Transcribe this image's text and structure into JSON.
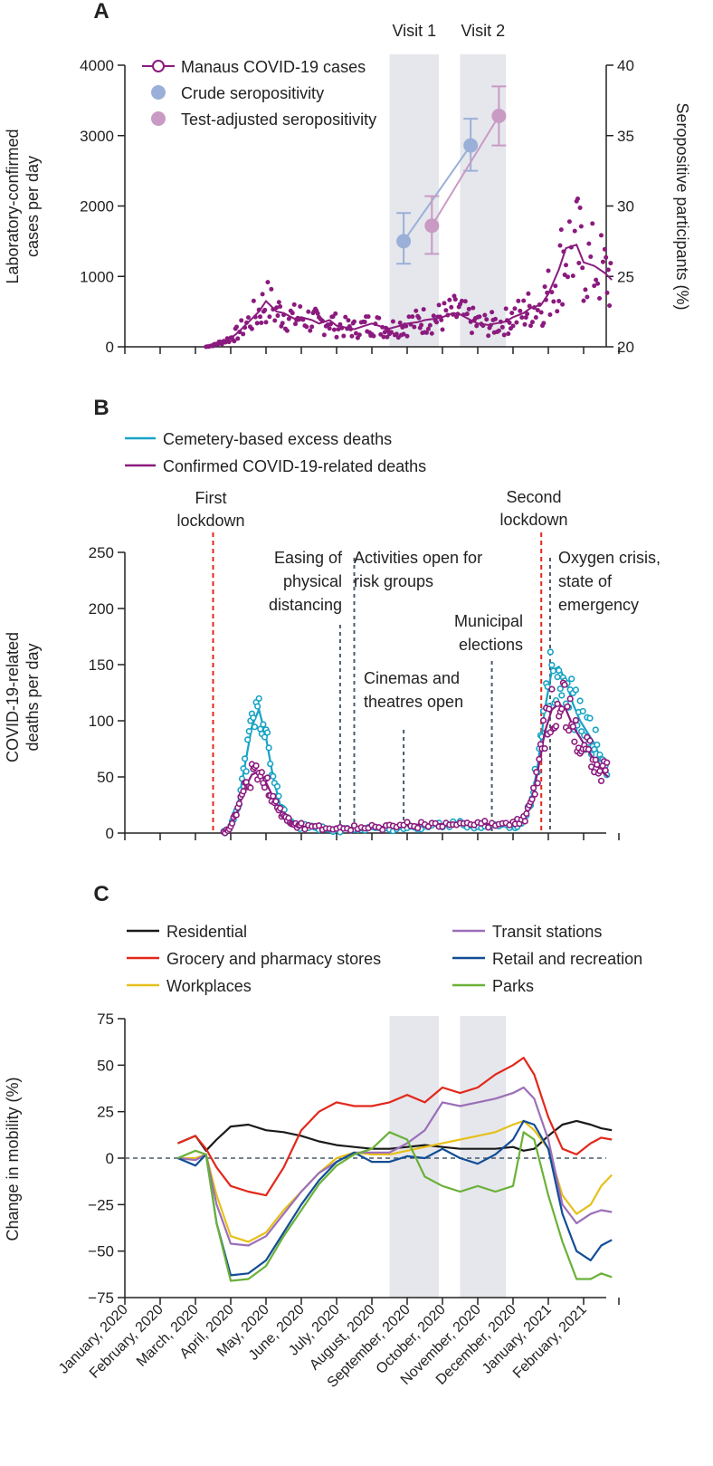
{
  "chart_data": [
    {
      "panel": "A",
      "type": "scatter",
      "title": "",
      "ylabel_left": "Laboratory-confirmed cases per day",
      "ylabel_right": "Seropositive participants (%)",
      "ylim_left": [
        0,
        4000
      ],
      "yticks_left": [
        "0",
        "1000",
        "2000",
        "3000",
        "4000"
      ],
      "ylim_right": [
        20,
        40
      ],
      "yticks_right": [
        "20",
        "25",
        "30",
        "35",
        "40"
      ],
      "visit_labels": [
        "Visit 1",
        "Visit 2"
      ],
      "visit_windows": [
        [
          7.5,
          8.9
        ],
        [
          9.5,
          10.8
        ]
      ],
      "legend": [
        "Manaus COVID-19 cases",
        "Crude seropositivity",
        "Test-adjusted seropositivity"
      ],
      "colors": {
        "cases": "#8b1a7e",
        "crude": "#9bb0d8",
        "adjusted": "#c99ac4",
        "band": "#e5e7ec"
      },
      "cases_series": {
        "name": "Manaus COVID-19 cases",
        "x": [
          2.3,
          2.5,
          2.7,
          3.0,
          3.2,
          3.5,
          3.8,
          4.0,
          4.3,
          4.5,
          4.8,
          5.0,
          5.3,
          5.5,
          5.8,
          6.0,
          6.3,
          6.5,
          6.8,
          7.0,
          7.3,
          7.5,
          7.8,
          8.0,
          8.3,
          8.5,
          8.8,
          9.0,
          9.3,
          9.5,
          9.8,
          10.0,
          10.3,
          10.5,
          10.8,
          11.0,
          11.3,
          11.5,
          11.8,
          12.0,
          12.3,
          12.5,
          12.8,
          13.0,
          13.3,
          13.6,
          13.8
        ],
        "values": [
          0,
          20,
          60,
          120,
          200,
          350,
          500,
          650,
          500,
          480,
          400,
          420,
          380,
          330,
          380,
          300,
          270,
          250,
          300,
          330,
          280,
          260,
          300,
          330,
          350,
          380,
          400,
          420,
          480,
          460,
          380,
          330,
          310,
          330,
          360,
          420,
          480,
          550,
          600,
          750,
          1100,
          1400,
          1450,
          1200,
          1150,
          1050,
          950
        ]
      },
      "crude_seropositivity": {
        "x": [
          7.9,
          9.8
        ],
        "values": [
          27.5,
          34.3
        ],
        "err_low": [
          25.9,
          32.5
        ],
        "err_high": [
          29.5,
          36.2
        ]
      },
      "adjusted_seropositivity": {
        "x": [
          8.7,
          10.6
        ],
        "values": [
          28.6,
          36.4
        ],
        "err_low": [
          26.6,
          34.3
        ],
        "err_high": [
          30.7,
          38.5
        ]
      }
    },
    {
      "panel": "B",
      "type": "line",
      "title": "",
      "ylabel": "COVID-19-related deaths per day",
      "ylim": [
        0,
        250
      ],
      "yticks": [
        "0",
        "50",
        "100",
        "150",
        "200",
        "250"
      ],
      "legend": [
        "Cemetery-based excess deaths",
        "Confirmed COVID-19-related deaths"
      ],
      "colors": {
        "cemetery": "#17a3c4",
        "confirmed": "#8b1a7e",
        "lockdown": "#e2281b",
        "event": "#4a5a6a"
      },
      "series": [
        {
          "name": "Cemetery-based excess deaths",
          "x": [
            2.8,
            3.0,
            3.2,
            3.4,
            3.6,
            3.8,
            4.0,
            4.2,
            4.4,
            4.6,
            4.8,
            5.0,
            5.5,
            6.0,
            6.5,
            7.0,
            7.5,
            8.0,
            8.5,
            9.0,
            9.5,
            10.0,
            10.5,
            11.0,
            11.3,
            11.5,
            11.7,
            11.9,
            12.1,
            12.3,
            12.5,
            12.7,
            12.9,
            13.1,
            13.3,
            13.5,
            13.7
          ],
          "values": [
            0,
            5,
            25,
            60,
            95,
            110,
            85,
            50,
            25,
            12,
            8,
            6,
            4,
            3,
            3,
            4,
            4,
            5,
            6,
            7,
            8,
            6,
            6,
            7,
            10,
            25,
            60,
            110,
            145,
            148,
            135,
            115,
            100,
            90,
            80,
            65,
            55
          ]
        },
        {
          "name": "Confirmed COVID-19-related deaths",
          "x": [
            2.8,
            3.0,
            3.2,
            3.4,
            3.6,
            3.8,
            4.0,
            4.2,
            4.4,
            4.6,
            4.8,
            5.0,
            5.5,
            6.0,
            6.5,
            7.0,
            7.5,
            8.0,
            8.5,
            9.0,
            9.5,
            10.0,
            10.5,
            11.0,
            11.3,
            11.5,
            11.7,
            11.9,
            12.1,
            12.3,
            12.5,
            12.7,
            12.9,
            13.1,
            13.3,
            13.5,
            13.7
          ],
          "values": [
            0,
            5,
            20,
            40,
            52,
            55,
            45,
            32,
            20,
            12,
            8,
            6,
            5,
            4,
            5,
            5,
            6,
            7,
            8,
            8,
            9,
            8,
            8,
            9,
            12,
            25,
            55,
            90,
            110,
            115,
            110,
            95,
            85,
            75,
            65,
            55,
            50
          ]
        }
      ],
      "lockdowns": [
        {
          "label_lines": [
            "First",
            "lockdown"
          ],
          "x": 2.5
        },
        {
          "label_lines": [
            "Second",
            "lockdown"
          ],
          "x": 11.8
        }
      ],
      "events": [
        {
          "label_lines": [
            "Easing of",
            "physical",
            "distancing"
          ],
          "x": 6.1
        },
        {
          "label_lines": [
            "Activities open for",
            "risk groups"
          ],
          "x": 6.5
        },
        {
          "label_lines": [
            "Cinemas and",
            "theatres open"
          ],
          "x": 7.9
        },
        {
          "label_lines": [
            "Municipal",
            "elections"
          ],
          "x": 10.4
        },
        {
          "label_lines": [
            "Oxygen crisis,",
            "state of",
            "emergency"
          ],
          "x": 12.05
        }
      ]
    },
    {
      "panel": "C",
      "type": "line",
      "title": "",
      "ylabel": "Change in mobility (%)",
      "ylim": [
        -75,
        75
      ],
      "yticks": [
        "75",
        "50",
        "25",
        "0",
        "−25",
        "−50",
        "−75"
      ],
      "categories": [
        "January, 2020",
        "February, 2020",
        "March, 2020",
        "April, 2020",
        "May, 2020",
        "June, 2020",
        "July, 2020",
        "August, 2020",
        "September, 2020",
        "October, 2020",
        "November, 2020",
        "December, 2020",
        "January, 2021",
        "February, 2021"
      ],
      "visit_windows": [
        [
          7.5,
          8.9
        ],
        [
          9.5,
          10.8
        ]
      ],
      "x": [
        1.5,
        2.0,
        2.3,
        2.6,
        3.0,
        3.5,
        4.0,
        4.5,
        5.0,
        5.5,
        6.0,
        6.5,
        7.0,
        7.5,
        8.0,
        8.5,
        9.0,
        9.5,
        10.0,
        10.5,
        11.0,
        11.3,
        11.6,
        12.0,
        12.4,
        12.8,
        13.2,
        13.5,
        13.8
      ],
      "series": [
        {
          "name": "Residential",
          "color": "#1a1a1a",
          "values": [
            8,
            12,
            4,
            10,
            17,
            18,
            15,
            14,
            12,
            9,
            7,
            6,
            5,
            5,
            6,
            7,
            6,
            5,
            5,
            5,
            6,
            4,
            5,
            12,
            18,
            20,
            18,
            16,
            15
          ]
        },
        {
          "name": "Grocery and pharmacy stores",
          "color": "#e2281b",
          "values": [
            8,
            12,
            5,
            -5,
            -15,
            -18,
            -20,
            -5,
            15,
            25,
            30,
            28,
            28,
            30,
            34,
            30,
            38,
            35,
            38,
            45,
            50,
            54,
            45,
            22,
            5,
            2,
            8,
            11,
            10
          ]
        },
        {
          "name": "Workplaces",
          "color": "#e6c01a",
          "values": [
            0,
            0,
            2,
            -20,
            -42,
            -45,
            -40,
            -28,
            -18,
            -8,
            0,
            3,
            2,
            2,
            4,
            6,
            8,
            10,
            12,
            14,
            18,
            20,
            15,
            5,
            -20,
            -30,
            -25,
            -15,
            -9
          ]
        },
        {
          "name": "Transit stations",
          "color": "#9b6fb8",
          "values": [
            0,
            -1,
            2,
            -25,
            -46,
            -47,
            -42,
            -30,
            -18,
            -8,
            -2,
            3,
            3,
            3,
            8,
            15,
            30,
            28,
            30,
            32,
            35,
            38,
            32,
            10,
            -25,
            -35,
            -30,
            -28,
            -29
          ]
        },
        {
          "name": "Retail and recreation",
          "color": "#124d96",
          "values": [
            0,
            -4,
            2,
            -35,
            -63,
            -62,
            -55,
            -40,
            -25,
            -12,
            -2,
            3,
            -2,
            -2,
            1,
            0,
            5,
            0,
            -3,
            2,
            10,
            20,
            18,
            5,
            -30,
            -50,
            -55,
            -47,
            -44
          ]
        },
        {
          "name": "Parks",
          "color": "#6ab139",
          "values": [
            0,
            4,
            2,
            -35,
            -66,
            -65,
            -58,
            -42,
            -28,
            -14,
            -4,
            2,
            5,
            14,
            10,
            -10,
            -15,
            -18,
            -15,
            -18,
            -15,
            14,
            10,
            -20,
            -45,
            -65,
            -65,
            -62,
            -64
          ]
        }
      ]
    }
  ]
}
